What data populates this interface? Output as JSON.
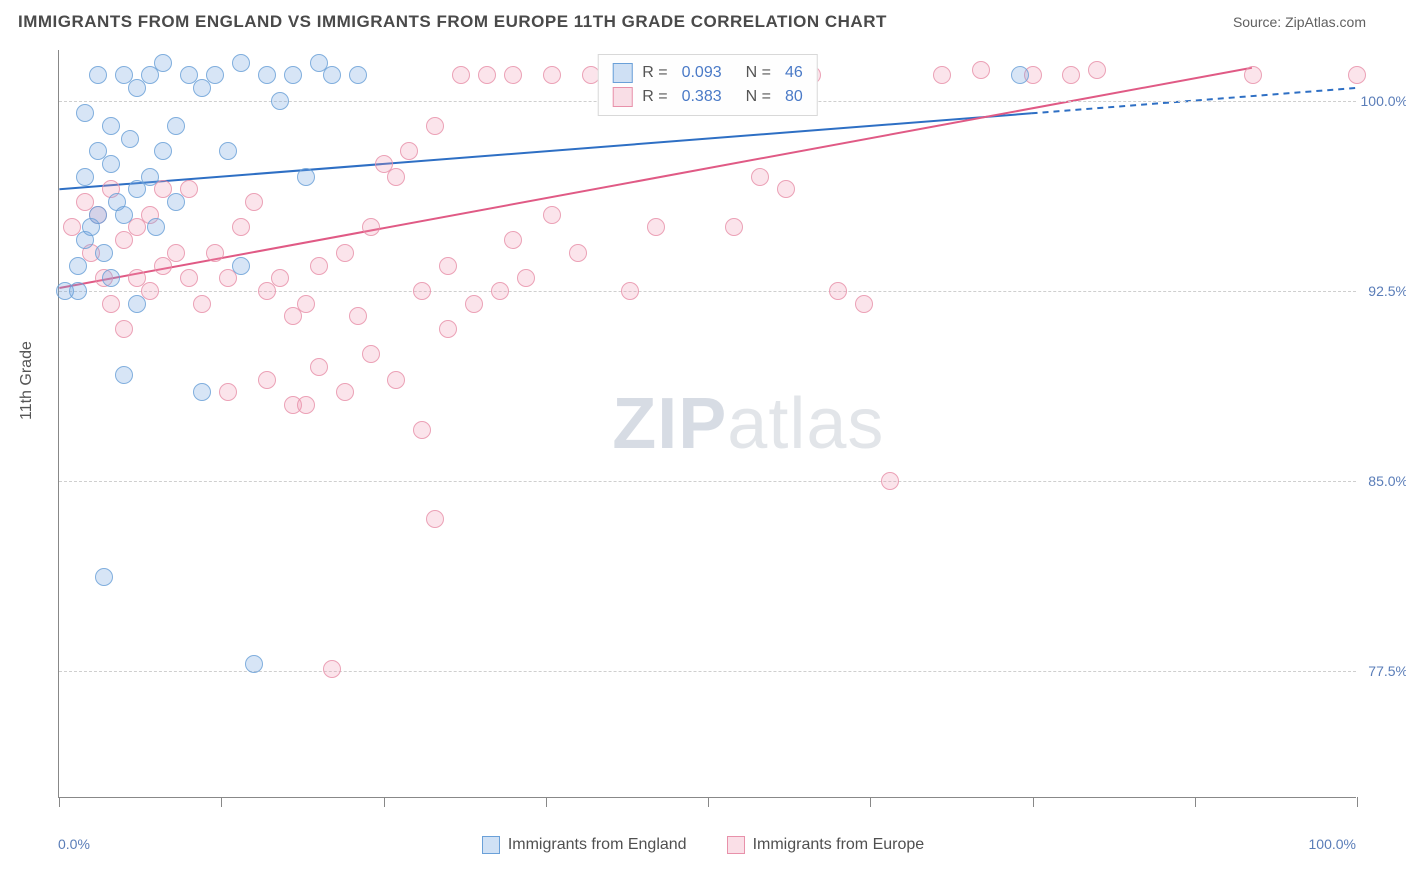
{
  "title": "IMMIGRANTS FROM ENGLAND VS IMMIGRANTS FROM EUROPE 11TH GRADE CORRELATION CHART",
  "source": "Source: ZipAtlas.com",
  "watermark_a": "ZIP",
  "watermark_b": "atlas",
  "y_axis_label": "11th Grade",
  "x_min_label": "0.0%",
  "x_max_label": "100.0%",
  "chart": {
    "type": "scatter",
    "xlim": [
      0,
      100
    ],
    "ylim": [
      72.5,
      102.0
    ],
    "y_ticks": [
      {
        "v": 100.0,
        "label": "100.0%"
      },
      {
        "v": 92.5,
        "label": "92.5%"
      },
      {
        "v": 85.0,
        "label": "85.0%"
      },
      {
        "v": 77.5,
        "label": "77.5%"
      }
    ],
    "x_tick_positions": [
      0,
      12.5,
      25,
      37.5,
      50,
      62.5,
      75,
      87.5,
      100
    ],
    "background_color": "#ffffff",
    "grid_color": "#cfcfcf",
    "series": [
      {
        "id": "england",
        "label": "Immigrants from England",
        "color_fill": "rgba(120,170,225,0.35)",
        "color_stroke": "#6aa0d8",
        "trend": {
          "x1": 0,
          "y1": 96.5,
          "x2": 100,
          "y2": 100.5,
          "solid_to_x": 75,
          "color": "#2e6fc4",
          "width": 2
        },
        "stats": {
          "R": "0.093",
          "N": "46"
        },
        "points": [
          [
            2,
            97
          ],
          [
            3,
            98
          ],
          [
            4,
            99
          ],
          [
            5,
            101
          ],
          [
            6,
            100.5
          ],
          [
            7,
            101
          ],
          [
            8,
            101.5
          ],
          [
            3,
            95.5
          ],
          [
            4.5,
            96
          ],
          [
            2,
            94.5
          ],
          [
            1.5,
            93.5
          ],
          [
            2.5,
            95
          ],
          [
            3.5,
            94
          ],
          [
            4,
            93
          ],
          [
            5,
            95.5
          ],
          [
            6,
            96.5
          ],
          [
            7,
            97
          ],
          [
            8,
            98
          ],
          [
            9,
            99
          ],
          [
            10,
            101
          ],
          [
            11,
            100.5
          ],
          [
            12,
            101
          ],
          [
            14,
            101.5
          ],
          [
            16,
            101
          ],
          [
            17,
            100
          ],
          [
            18,
            101
          ],
          [
            20,
            101.5
          ],
          [
            13,
            98
          ],
          [
            5,
            89.2
          ],
          [
            11,
            88.5
          ],
          [
            3.5,
            81.2
          ],
          [
            15,
            77.8
          ],
          [
            1.5,
            92.5
          ],
          [
            0.5,
            92.5
          ],
          [
            6,
            92
          ],
          [
            2,
            99.5
          ],
          [
            7.5,
            95
          ],
          [
            4,
            97.5
          ],
          [
            5.5,
            98.5
          ],
          [
            9,
            96
          ],
          [
            3,
            101
          ],
          [
            21,
            101
          ],
          [
            23,
            101
          ],
          [
            14,
            93.5
          ],
          [
            19,
            97
          ],
          [
            74,
            101
          ]
        ]
      },
      {
        "id": "europe",
        "label": "Immigrants from Europe",
        "color_fill": "rgba(240,150,175,0.30)",
        "color_stroke": "#e891aa",
        "trend": {
          "x1": 0,
          "y1": 92.6,
          "x2": 92,
          "y2": 101.3,
          "color": "#e05a85",
          "width": 2
        },
        "stats": {
          "R": "0.383",
          "N": "80"
        },
        "points": [
          [
            1,
            95
          ],
          [
            2,
            96
          ],
          [
            3,
            95.5
          ],
          [
            4,
            96.5
          ],
          [
            2.5,
            94
          ],
          [
            3.5,
            93
          ],
          [
            5,
            94.5
          ],
          [
            6,
            95
          ],
          [
            7,
            95.5
          ],
          [
            8,
            96.5
          ],
          [
            4,
            92
          ],
          [
            5,
            91
          ],
          [
            6,
            93
          ],
          [
            7,
            92.5
          ],
          [
            8,
            93.5
          ],
          [
            9,
            94
          ],
          [
            10,
            93
          ],
          [
            11,
            92
          ],
          [
            12,
            94
          ],
          [
            13,
            93
          ],
          [
            14,
            95
          ],
          [
            15,
            96
          ],
          [
            16,
            92.5
          ],
          [
            17,
            93
          ],
          [
            18,
            91.5
          ],
          [
            19,
            92
          ],
          [
            20,
            93.5
          ],
          [
            22,
            94
          ],
          [
            16,
            89
          ],
          [
            18,
            88
          ],
          [
            20,
            89.5
          ],
          [
            22,
            88.5
          ],
          [
            24,
            90
          ],
          [
            26,
            89
          ],
          [
            28,
            92.5
          ],
          [
            30,
            91
          ],
          [
            32,
            92
          ],
          [
            34,
            92.5
          ],
          [
            36,
            93
          ],
          [
            25,
            97.5
          ],
          [
            27,
            98
          ],
          [
            29,
            99
          ],
          [
            31,
            101
          ],
          [
            33,
            101
          ],
          [
            35,
            101
          ],
          [
            38,
            101
          ],
          [
            41,
            101
          ],
          [
            43,
            101
          ],
          [
            45,
            101
          ],
          [
            48,
            100
          ],
          [
            50,
            101
          ],
          [
            54,
            97
          ],
          [
            56,
            96.5
          ],
          [
            60,
            92.5
          ],
          [
            64,
            85
          ],
          [
            58,
            101
          ],
          [
            52,
            95
          ],
          [
            28,
            87
          ],
          [
            29,
            83.5
          ],
          [
            21,
            77.6
          ],
          [
            13,
            88.5
          ],
          [
            10,
            96.5
          ],
          [
            24,
            95
          ],
          [
            26,
            97
          ],
          [
            40,
            94
          ],
          [
            35,
            94.5
          ],
          [
            23,
            91.5
          ],
          [
            68,
            101
          ],
          [
            71,
            101.2
          ],
          [
            75,
            101
          ],
          [
            78,
            101
          ],
          [
            80,
            101.2
          ],
          [
            92,
            101
          ],
          [
            100,
            101
          ],
          [
            62,
            92
          ],
          [
            46,
            95
          ],
          [
            44,
            92.5
          ],
          [
            38,
            95.5
          ],
          [
            30,
            93.5
          ],
          [
            19,
            88
          ]
        ]
      }
    ]
  },
  "bottom_legend": {
    "england": "Immigrants from England",
    "europe": "Immigrants from Europe"
  }
}
